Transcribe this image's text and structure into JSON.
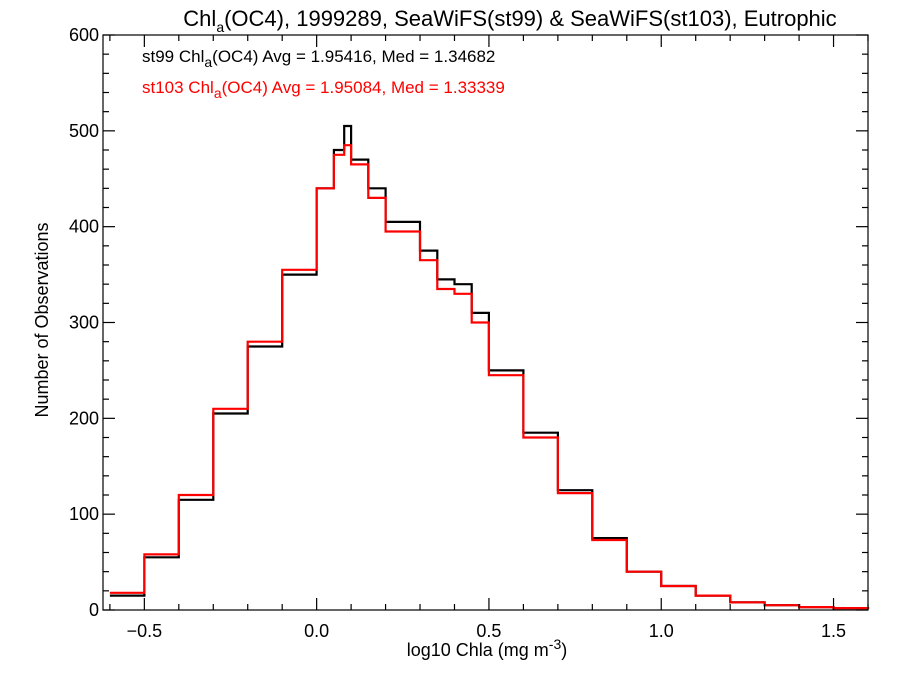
{
  "chart_data": {
    "type": "line",
    "title": {
      "before_sub": "Chl",
      "sub": "a",
      "after_sub": "(OC4), 1999289, SeaWiFS(st99) & SeaWiFS(st103), Eutrophic"
    },
    "xlabel": {
      "before_sup": "log10 Chla (mg m",
      "sup": "-3",
      "after_sup": ")"
    },
    "ylabel": "Number of Observations",
    "xlim": [
      -0.62,
      1.6
    ],
    "ylim": [
      0,
      600
    ],
    "xticks": [
      -0.5,
      0.0,
      0.5,
      1.0,
      1.5
    ],
    "xtick_labels": [
      "−0.5",
      "0.0",
      "0.5",
      "1.0",
      "1.5"
    ],
    "yticks": [
      0,
      100,
      200,
      300,
      400,
      500,
      600
    ],
    "ytick_labels": [
      "0",
      "100",
      "200",
      "300",
      "400",
      "500",
      "600"
    ],
    "grid": false,
    "series": [
      {
        "color": "#000000",
        "legend": {
          "before_sub": "st99 Chl",
          "sub": "a",
          "after_sub": "(OC4) Avg = 1.95416, Med = 1.34682"
        },
        "x": [
          -0.6,
          -0.5,
          -0.4,
          -0.3,
          -0.2,
          -0.1,
          0.0,
          0.05,
          0.08,
          0.1,
          0.15,
          0.2,
          0.3,
          0.35,
          0.4,
          0.45,
          0.5,
          0.6,
          0.7,
          0.8,
          0.9,
          1.0,
          1.1,
          1.2,
          1.3,
          1.4,
          1.5,
          1.6
        ],
        "y": [
          15,
          55,
          115,
          205,
          275,
          350,
          440,
          480,
          505,
          470,
          440,
          405,
          375,
          345,
          340,
          310,
          250,
          185,
          125,
          75,
          40,
          25,
          15,
          8,
          5,
          3,
          2,
          1
        ]
      },
      {
        "color": "#ff0000",
        "legend": {
          "before_sub": "st103 Chl",
          "sub": "a",
          "after_sub": "(OC4) Avg = 1.95084, Med = 1.33339"
        },
        "x": [
          -0.6,
          -0.5,
          -0.4,
          -0.3,
          -0.2,
          -0.1,
          0.0,
          0.05,
          0.08,
          0.1,
          0.15,
          0.2,
          0.3,
          0.35,
          0.4,
          0.45,
          0.5,
          0.6,
          0.7,
          0.8,
          0.9,
          1.0,
          1.1,
          1.2,
          1.3,
          1.4,
          1.5,
          1.6
        ],
        "y": [
          18,
          58,
          120,
          210,
          280,
          355,
          440,
          475,
          485,
          465,
          430,
          395,
          365,
          335,
          330,
          300,
          245,
          180,
          122,
          73,
          40,
          25,
          15,
          8,
          5,
          3,
          2,
          1
        ]
      }
    ]
  }
}
